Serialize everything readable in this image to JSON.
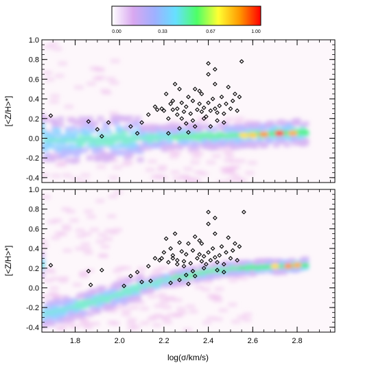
{
  "colorbar": {
    "ticks": [
      "0.00",
      "0.33",
      "0.67",
      "1.00"
    ],
    "colors": [
      "#ffffff",
      "#d9a8f0",
      "#9fb0ff",
      "#66e0ff",
      "#4dff66",
      "#ffff33",
      "#ff9900",
      "#ff0000"
    ]
  },
  "chart_data": [
    {
      "type": "heatmap",
      "panel": "top",
      "ylabel": "[<Z/H>*]",
      "xlabel": "",
      "xlim": [
        1.65,
        2.97
      ],
      "ylim": [
        -0.45,
        1.0
      ],
      "yticks": [
        "-0.4",
        "-0.2",
        "0.0",
        "0.2",
        "0.4",
        "0.6",
        "0.8",
        "1.0"
      ],
      "density_ridge": [
        [
          1.66,
          -0.02
        ],
        [
          1.8,
          -0.02
        ],
        [
          1.95,
          0.0
        ],
        [
          2.1,
          0.0
        ],
        [
          2.25,
          0.01
        ],
        [
          2.4,
          0.02
        ],
        [
          2.55,
          0.03
        ],
        [
          2.7,
          0.05
        ],
        [
          2.83,
          0.06
        ]
      ],
      "points": [
        [
          1.69,
          0.23
        ],
        [
          1.86,
          0.17
        ],
        [
          1.9,
          0.09
        ],
        [
          1.92,
          0.02
        ],
        [
          1.95,
          0.16
        ],
        [
          2.05,
          0.12
        ],
        [
          2.08,
          0.05
        ],
        [
          2.1,
          0.16
        ],
        [
          2.13,
          0.24
        ],
        [
          2.16,
          0.32
        ],
        [
          2.17,
          0.29
        ],
        [
          2.2,
          0.28
        ],
        [
          2.21,
          0.45
        ],
        [
          2.22,
          0.2
        ],
        [
          2.23,
          0.35
        ],
        [
          2.24,
          0.38
        ],
        [
          2.25,
          0.55
        ],
        [
          2.26,
          0.3
        ],
        [
          2.27,
          0.5
        ],
        [
          2.28,
          0.36
        ],
        [
          2.28,
          0.2
        ],
        [
          2.3,
          0.15
        ],
        [
          2.3,
          0.32
        ],
        [
          2.31,
          0.42
        ],
        [
          2.32,
          0.25
        ],
        [
          2.33,
          0.38
        ],
        [
          2.33,
          0.18
        ],
        [
          2.34,
          0.5
        ],
        [
          2.35,
          0.29
        ],
        [
          2.36,
          0.35
        ],
        [
          2.37,
          0.27
        ],
        [
          2.37,
          0.45
        ],
        [
          2.38,
          0.31
        ],
        [
          2.39,
          0.22
        ],
        [
          2.4,
          0.65
        ],
        [
          2.4,
          0.36
        ],
        [
          2.41,
          0.28
        ],
        [
          2.42,
          0.4
        ],
        [
          2.43,
          0.3
        ],
        [
          2.43,
          0.55
        ],
        [
          2.44,
          0.26
        ],
        [
          2.45,
          0.33
        ],
        [
          2.46,
          0.42
        ],
        [
          2.47,
          0.25
        ],
        [
          2.48,
          0.35
        ],
        [
          2.49,
          0.52
        ],
        [
          2.5,
          0.3
        ],
        [
          2.51,
          0.38
        ],
        [
          2.52,
          0.45
        ],
        [
          2.53,
          0.28
        ],
        [
          2.54,
          0.42
        ],
        [
          2.55,
          0.78
        ],
        [
          2.4,
          0.76
        ],
        [
          2.43,
          0.7
        ],
        [
          2.36,
          0.48
        ],
        [
          2.27,
          0.1
        ],
        [
          2.22,
          0.05
        ],
        [
          2.34,
          0.12
        ],
        [
          2.31,
          0.06
        ],
        [
          2.19,
          0.3
        ],
        [
          2.38,
          0.2
        ],
        [
          2.44,
          0.18
        ],
        [
          2.47,
          0.16
        ],
        [
          2.26,
          0.24
        ],
        [
          2.29,
          0.27
        ],
        [
          2.24,
          0.29
        ],
        [
          2.41,
          0.12
        ]
      ]
    },
    {
      "type": "heatmap",
      "panel": "bottom",
      "ylabel": "[<Z/H>*]",
      "xlabel": "log(σ/km/s)",
      "xlim": [
        1.65,
        2.97
      ],
      "ylim": [
        -0.45,
        1.0
      ],
      "xticks": [
        "1.8",
        "2.0",
        "2.2",
        "2.4",
        "2.6",
        "2.8"
      ],
      "yticks": [
        "-0.4",
        "-0.2",
        "0.0",
        "0.2",
        "0.4",
        "0.6",
        "0.8",
        "1.0"
      ],
      "density_ridge": [
        [
          1.66,
          -0.27
        ],
        [
          1.75,
          -0.22
        ],
        [
          1.85,
          -0.17
        ],
        [
          1.95,
          -0.1
        ],
        [
          2.05,
          -0.03
        ],
        [
          2.15,
          0.04
        ],
        [
          2.25,
          0.1
        ],
        [
          2.35,
          0.14
        ],
        [
          2.45,
          0.18
        ],
        [
          2.55,
          0.2
        ],
        [
          2.65,
          0.21
        ],
        [
          2.75,
          0.22
        ],
        [
          2.83,
          0.23
        ]
      ],
      "points": [
        [
          1.69,
          0.23
        ],
        [
          1.86,
          0.17
        ],
        [
          1.87,
          0.03
        ],
        [
          1.92,
          0.18
        ],
        [
          2.02,
          0.02
        ],
        [
          2.05,
          0.12
        ],
        [
          2.08,
          0.16
        ],
        [
          2.1,
          0.06
        ],
        [
          2.13,
          0.22
        ],
        [
          2.16,
          0.3
        ],
        [
          2.18,
          0.28
        ],
        [
          2.2,
          0.36
        ],
        [
          2.21,
          0.5
        ],
        [
          2.22,
          0.26
        ],
        [
          2.23,
          0.4
        ],
        [
          2.24,
          0.33
        ],
        [
          2.25,
          0.55
        ],
        [
          2.26,
          0.28
        ],
        [
          2.27,
          0.46
        ],
        [
          2.28,
          0.37
        ],
        [
          2.29,
          0.22
        ],
        [
          2.3,
          0.13
        ],
        [
          2.3,
          0.34
        ],
        [
          2.31,
          0.45
        ],
        [
          2.32,
          0.25
        ],
        [
          2.33,
          0.38
        ],
        [
          2.33,
          0.17
        ],
        [
          2.34,
          0.52
        ],
        [
          2.35,
          0.3
        ],
        [
          2.36,
          0.34
        ],
        [
          2.37,
          0.27
        ],
        [
          2.37,
          0.45
        ],
        [
          2.38,
          0.32
        ],
        [
          2.39,
          0.24
        ],
        [
          2.4,
          0.65
        ],
        [
          2.4,
          0.36
        ],
        [
          2.41,
          0.28
        ],
        [
          2.42,
          0.4
        ],
        [
          2.43,
          0.31
        ],
        [
          2.43,
          0.55
        ],
        [
          2.44,
          0.26
        ],
        [
          2.45,
          0.33
        ],
        [
          2.46,
          0.42
        ],
        [
          2.47,
          0.24
        ],
        [
          2.48,
          0.36
        ],
        [
          2.49,
          0.51
        ],
        [
          2.5,
          0.3
        ],
        [
          2.51,
          0.38
        ],
        [
          2.52,
          0.45
        ],
        [
          2.53,
          0.28
        ],
        [
          2.54,
          0.42
        ],
        [
          2.56,
          0.77
        ],
        [
          2.4,
          0.77
        ],
        [
          2.43,
          0.71
        ],
        [
          2.36,
          0.48
        ],
        [
          2.27,
          0.08
        ],
        [
          2.23,
          0.05
        ],
        [
          2.34,
          0.12
        ],
        [
          2.31,
          0.04
        ],
        [
          2.19,
          0.3
        ],
        [
          2.38,
          0.2
        ],
        [
          2.44,
          0.18
        ],
        [
          2.47,
          0.16
        ],
        [
          2.26,
          0.24
        ],
        [
          2.29,
          0.27
        ],
        [
          2.24,
          0.3
        ],
        [
          2.14,
          0.07
        ]
      ]
    }
  ]
}
